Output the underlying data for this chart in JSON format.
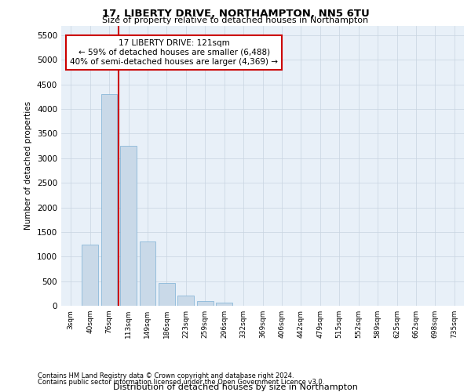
{
  "title1": "17, LIBERTY DRIVE, NORTHAMPTON, NN5 6TU",
  "title2": "Size of property relative to detached houses in Northampton",
  "xlabel": "Distribution of detached houses by size in Northampton",
  "ylabel": "Number of detached properties",
  "footnote1": "Contains HM Land Registry data © Crown copyright and database right 2024.",
  "footnote2": "Contains public sector information licensed under the Open Government Licence v3.0.",
  "property_label": "17 LIBERTY DRIVE: 121sqm",
  "annotation_line1": "← 59% of detached houses are smaller (6,488)",
  "annotation_line2": "40% of semi-detached houses are larger (4,369) →",
  "bar_color": "#c9d9e8",
  "bar_edge_color": "#7bafd4",
  "vline_color": "#cc0000",
  "annotation_box_color": "#cc0000",
  "categories": [
    "3sqm",
    "40sqm",
    "76sqm",
    "113sqm",
    "149sqm",
    "186sqm",
    "223sqm",
    "259sqm",
    "296sqm",
    "332sqm",
    "369sqm",
    "406sqm",
    "442sqm",
    "479sqm",
    "515sqm",
    "552sqm",
    "589sqm",
    "625sqm",
    "662sqm",
    "698sqm",
    "735sqm"
  ],
  "values": [
    0,
    1250,
    4300,
    3250,
    1300,
    470,
    200,
    90,
    65,
    0,
    0,
    0,
    0,
    0,
    0,
    0,
    0,
    0,
    0,
    0,
    0
  ],
  "ylim": [
    0,
    5700
  ],
  "yticks": [
    0,
    500,
    1000,
    1500,
    2000,
    2500,
    3000,
    3500,
    4000,
    4500,
    5000,
    5500
  ],
  "vline_x_index": 3,
  "grid_color": "#c8d4e0",
  "bg_color": "#e8f0f8"
}
